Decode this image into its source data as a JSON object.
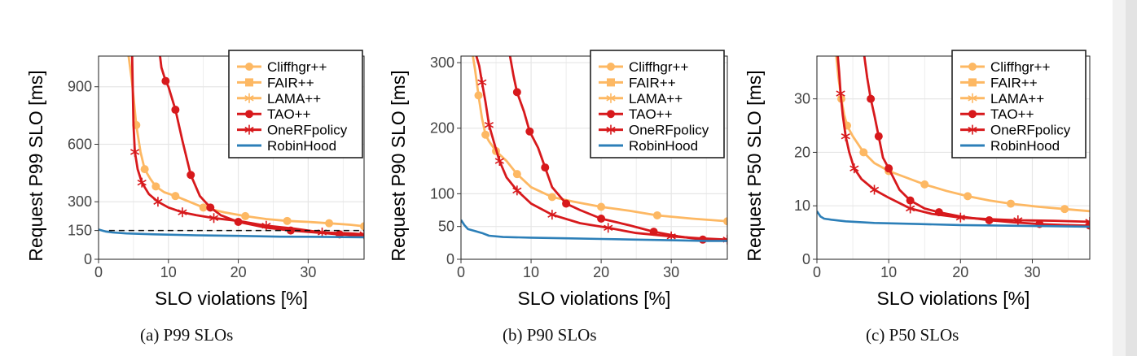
{
  "colors": {
    "Cliffhgr++": "#fdb863",
    "FAIR++": "#fdb863",
    "LAMA++": "#fdb863",
    "TAO++": "#d7191c",
    "OneRFpolicy": "#d7191c",
    "RobinHood": "#2c7fb8",
    "frame": "#222222",
    "grid": "#e6e6e6"
  },
  "legend_entries": [
    "Cliffhgr++",
    "FAIR++",
    "LAMA++",
    "TAO++",
    "OneRFpolicy",
    "RobinHood"
  ],
  "legend_markers": {
    "Cliffhgr++": "circle",
    "FAIR++": "square",
    "LAMA++": "asterisk",
    "TAO++": "circle",
    "OneRFpolicy": "asterisk",
    "RobinHood": "none"
  },
  "captions": [
    "(a) P99 SLOs",
    "(b) P90 SLOs",
    "(c) P50 SLOs"
  ],
  "chart_data": [
    {
      "type": "line",
      "xlabel": "SLO violations [%]",
      "ylabel": "Request P99 SLO [ms]",
      "xlim": [
        0,
        38
      ],
      "ylim": [
        0,
        1060
      ],
      "xticks": [
        "0",
        "10",
        "20",
        "30"
      ],
      "yticks": [
        "0",
        "150",
        "300",
        "600",
        "900"
      ],
      "reference_line": {
        "y": 150,
        "x": [
          1.5,
          38
        ],
        "style": "dashed"
      },
      "series": [
        {
          "name": "Cliffhgr++",
          "x": [
            4.3,
            4.8,
            5.4,
            6.0,
            6.6,
            7.4,
            8.2,
            9.4,
            11,
            13,
            15,
            18,
            21,
            24,
            27,
            30,
            33,
            36,
            38
          ],
          "y": [
            1060,
            920,
            700,
            560,
            470,
            420,
            380,
            350,
            330,
            300,
            270,
            245,
            225,
            210,
            200,
            195,
            188,
            180,
            172
          ]
        },
        {
          "name": "TAO++",
          "x": [
            8.8,
            9.0,
            9.6,
            10.0,
            11.0,
            12.0,
            13.2,
            14.5,
            16.0,
            17.5,
            20.0,
            24.0,
            27.5,
            31.0,
            34.5,
            38.0
          ],
          "y": [
            1060,
            1000,
            930,
            900,
            780,
            620,
            440,
            330,
            270,
            230,
            195,
            165,
            150,
            140,
            130,
            122
          ]
        },
        {
          "name": "OneRFpolicy",
          "x": [
            4.8,
            5.0,
            5.2,
            5.6,
            6.2,
            7.2,
            8.5,
            10.0,
            12.0,
            14.0,
            16.5,
            20.0,
            24.0,
            28.0,
            32.0,
            36.0,
            38.0
          ],
          "y": [
            1060,
            700,
            560,
            470,
            400,
            340,
            300,
            270,
            245,
            230,
            215,
            200,
            175,
            160,
            140,
            135,
            130
          ]
        },
        {
          "name": "RobinHood",
          "x": [
            0,
            1.0,
            2.0,
            4.0,
            8.0,
            14.0,
            20.0,
            26.0,
            32.0,
            38.0
          ],
          "y": [
            155,
            145,
            140,
            135,
            130,
            125,
            122,
            118,
            117,
            115
          ]
        }
      ]
    },
    {
      "type": "line",
      "xlabel": "SLO violations [%]",
      "ylabel": "Request P90 SLO [ms]",
      "xlim": [
        0,
        38
      ],
      "ylim": [
        0,
        310
      ],
      "xticks": [
        "0",
        "10",
        "20",
        "30"
      ],
      "yticks": [
        "0",
        "50",
        "100",
        "200",
        "300"
      ],
      "series": [
        {
          "name": "Cliffhgr++",
          "x": [
            1.7,
            2.0,
            2.5,
            3.0,
            3.5,
            4.0,
            5.0,
            6.5,
            8.0,
            10.0,
            13.0,
            16.0,
            20.0,
            24.0,
            28.0,
            33.0,
            38.0
          ],
          "y": [
            310,
            290,
            250,
            215,
            190,
            180,
            165,
            150,
            130,
            110,
            95,
            88,
            80,
            74,
            67,
            62,
            58
          ]
        },
        {
          "name": "TAO++",
          "x": [
            7.0,
            7.5,
            8.0,
            9.0,
            9.8,
            11.0,
            12.0,
            13.0,
            15.0,
            17.0,
            20.0,
            24.0,
            27.5,
            31.0,
            34.5,
            38.0
          ],
          "y": [
            310,
            280,
            255,
            225,
            195,
            170,
            140,
            110,
            85,
            75,
            62,
            52,
            42,
            35,
            30,
            28
          ]
        },
        {
          "name": "OneRFpolicy",
          "x": [
            2.2,
            2.6,
            3.0,
            3.5,
            4.0,
            4.8,
            5.5,
            6.5,
            8.0,
            10.0,
            13.0,
            17.0,
            21.0,
            25.0,
            30.0,
            34.0,
            38.0
          ],
          "y": [
            310,
            295,
            270,
            240,
            205,
            175,
            150,
            125,
            105,
            85,
            68,
            55,
            48,
            40,
            35,
            32,
            30
          ]
        },
        {
          "name": "RobinHood",
          "x": [
            0,
            0.5,
            1.0,
            2.0,
            3.0,
            4.0,
            6.0,
            10.0,
            15.0,
            20.0,
            25.0,
            30.0,
            35.0,
            38.0
          ],
          "y": [
            60,
            52,
            46,
            43,
            40,
            36,
            34,
            33,
            32,
            31,
            30,
            29,
            28,
            28
          ]
        }
      ]
    },
    {
      "type": "line",
      "xlabel": "SLO violations [%]",
      "ylabel": "Request P50 SLO [ms]",
      "xlim": [
        0,
        38
      ],
      "ylim": [
        0,
        38
      ],
      "xticks": [
        "0",
        "10",
        "20",
        "30"
      ],
      "yticks": [
        "0",
        "10",
        "20",
        "30"
      ],
      "series": [
        {
          "name": "Cliffhgr++",
          "x": [
            2.7,
            3.0,
            3.4,
            3.8,
            4.2,
            5.0,
            6.5,
            8.0,
            10.0,
            12.0,
            15.0,
            18.0,
            21.0,
            24.0,
            27.0,
            31.0,
            34.5,
            38.0
          ],
          "y": [
            38,
            34,
            30,
            27,
            25,
            23,
            20,
            18,
            16.5,
            15.5,
            14,
            12.8,
            11.8,
            11,
            10.4,
            9.8,
            9.4,
            9
          ]
        },
        {
          "name": "TAO++",
          "x": [
            6.6,
            7.0,
            7.5,
            8.0,
            8.6,
            9.2,
            10.0,
            11.5,
            13.0,
            15.0,
            17.0,
            20.0,
            24.0,
            27.5,
            31.0,
            34.5,
            38.0
          ],
          "y": [
            38,
            34,
            30,
            27,
            23,
            19,
            17,
            13,
            11,
            9.5,
            8.8,
            8,
            7.3,
            6.9,
            6.6,
            6.4,
            6.3
          ]
        },
        {
          "name": "OneRFpolicy",
          "x": [
            2.9,
            3.1,
            3.3,
            3.6,
            4.0,
            4.5,
            5.2,
            6.2,
            8.0,
            10.0,
            13.0,
            16.0,
            20.0,
            24.0,
            28.0,
            33.0,
            38.0
          ],
          "y": [
            38,
            35,
            31,
            27,
            23,
            20,
            17,
            15,
            13,
            11.5,
            9.5,
            8.5,
            7.8,
            7.5,
            7.3,
            7.2,
            7
          ]
        },
        {
          "name": "RobinHood",
          "x": [
            0,
            0.5,
            1.0,
            2.0,
            4.0,
            8.0,
            14.0,
            20.0,
            26.0,
            32.0,
            38.0
          ],
          "y": [
            9,
            8,
            7.6,
            7.4,
            7.1,
            6.8,
            6.6,
            6.4,
            6.3,
            6.2,
            6.1
          ]
        }
      ]
    }
  ]
}
